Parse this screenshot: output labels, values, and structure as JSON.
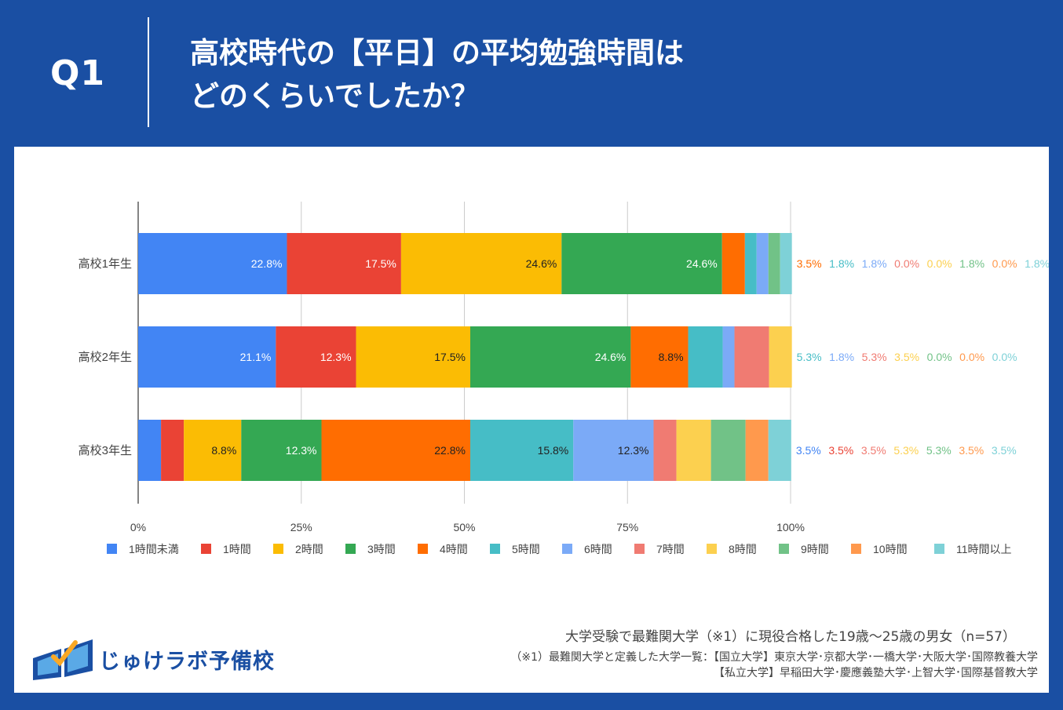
{
  "header": {
    "q_label": "Q1",
    "title_line1": "高校時代の【平日】の平均勉強時間は",
    "title_line2": "どのくらいでしたか？"
  },
  "footer": {
    "survey": "大学受験で最難関大学（※1）に現役合格した19歳〜25歳の男女（n=57）",
    "note_line1": "（※1）最難関大学と定義した大学一覧：【国立大学】東京大学･京都大学･一橋大学･大阪大学･国際教養大学",
    "note_line2": "【私立大学】早稲田大学･慶應義塾大学･上智大学･国際基督教大学"
  },
  "logo": {
    "text": "じゅけラボ予備校",
    "icon": "open-book-icon"
  },
  "colors": {
    "background": "#1a4fa3",
    "series": [
      "#4285f4",
      "#ea4335",
      "#fbbc04",
      "#34a853",
      "#ff6d01",
      "#46bdc6",
      "#7baaf7",
      "#f07b72",
      "#fcd04f",
      "#71c287",
      "#ff994d",
      "#7ed1d7"
    ]
  },
  "chart_data": {
    "type": "bar",
    "orientation": "horizontal",
    "stacked": true,
    "normalized": true,
    "categories": [
      "高校1年生",
      "高校2年生",
      "高校3年生"
    ],
    "x_ticks": [
      "0%",
      "25%",
      "50%",
      "75%",
      "100%"
    ],
    "xlim": [
      0,
      100
    ],
    "legend_position": "bottom",
    "series": [
      {
        "name": "1時間未満",
        "color": "#4285f4",
        "values": [
          22.8,
          21.1,
          3.5
        ]
      },
      {
        "name": "1時間",
        "color": "#ea4335",
        "values": [
          17.5,
          12.3,
          3.5
        ]
      },
      {
        "name": "2時間",
        "color": "#fbbc04",
        "values": [
          24.6,
          17.5,
          8.8
        ]
      },
      {
        "name": "3時間",
        "color": "#34a853",
        "values": [
          24.6,
          24.6,
          12.3
        ]
      },
      {
        "name": "4時間",
        "color": "#ff6d01",
        "values": [
          3.5,
          8.8,
          22.8
        ]
      },
      {
        "name": "5時間",
        "color": "#46bdc6",
        "values": [
          1.8,
          5.3,
          15.8
        ]
      },
      {
        "name": "6時間",
        "color": "#7baaf7",
        "values": [
          1.8,
          1.8,
          12.3
        ]
      },
      {
        "name": "7時間",
        "color": "#f07b72",
        "values": [
          0.0,
          5.3,
          3.5
        ]
      },
      {
        "name": "8時間",
        "color": "#fcd04f",
        "values": [
          0.0,
          3.5,
          5.3
        ]
      },
      {
        "name": "9時間",
        "color": "#71c287",
        "values": [
          1.8,
          0.0,
          5.3
        ]
      },
      {
        "name": "10時間",
        "color": "#ff994d",
        "values": [
          0.0,
          0.0,
          3.5
        ]
      },
      {
        "name": "11時間以上",
        "color": "#7ed1d7",
        "values": [
          1.8,
          0.0,
          3.5
        ]
      }
    ]
  }
}
